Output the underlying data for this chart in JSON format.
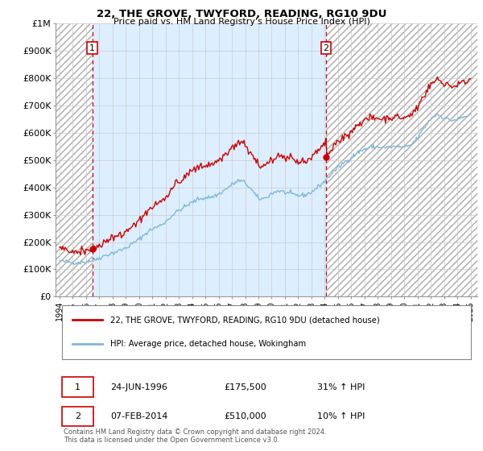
{
  "title": "22, THE GROVE, TWYFORD, READING, RG10 9DU",
  "subtitle": "Price paid vs. HM Land Registry's House Price Index (HPI)",
  "legend_line1": "22, THE GROVE, TWYFORD, READING, RG10 9DU (detached house)",
  "legend_line2": "HPI: Average price, detached house, Wokingham",
  "footer": "Contains HM Land Registry data © Crown copyright and database right 2024.\nThis data is licensed under the Open Government Licence v3.0.",
  "sale1_date": "24-JUN-1996",
  "sale1_price": 175500,
  "sale1_label": "£175,500",
  "sale1_hpi": "31% ↑ HPI",
  "sale2_date": "07-FEB-2014",
  "sale2_price": 510000,
  "sale2_label": "£510,000",
  "sale2_hpi": "10% ↑ HPI",
  "hpi_line_color": "#7fb8d8",
  "sale_line_color": "#cc0000",
  "marker_color": "#cc0000",
  "dashed_line_color": "#cc0000",
  "ylim": [
    0,
    1000000
  ],
  "yticks": [
    0,
    100000,
    200000,
    300000,
    400000,
    500000,
    600000,
    700000,
    800000,
    900000,
    1000000
  ],
  "ytick_labels": [
    "£0",
    "£100K",
    "£200K",
    "£300K",
    "£400K",
    "£500K",
    "£600K",
    "£700K",
    "£800K",
    "£900K",
    "£1M"
  ],
  "xlim_start": 1993.7,
  "xlim_end": 2025.5,
  "sale1_x": 1996.47,
  "sale2_x": 2014.09
}
